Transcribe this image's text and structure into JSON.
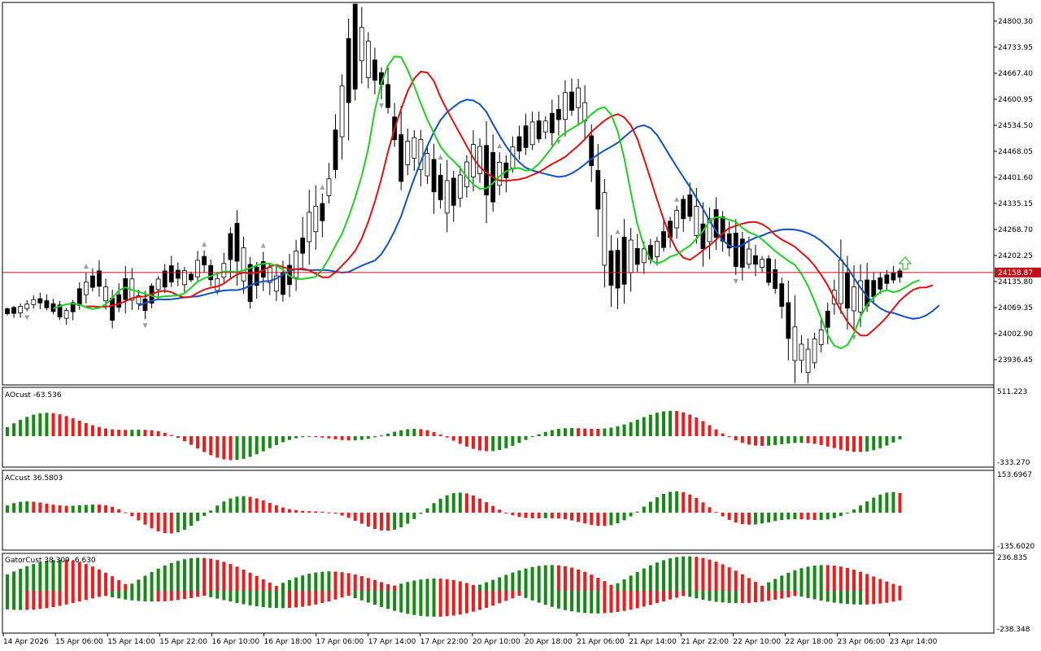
{
  "colors": {
    "bull": "#ffffff",
    "bear": "#000000",
    "jaw": "#1152c4",
    "teeth": "#e31010",
    "lips": "#19d31e",
    "up_bar": "#158a15",
    "down_bar": "#ee1c1c",
    "price_line": "#c8101a",
    "price_tag": "#c8101a",
    "fractal": "#9e9e9e",
    "signal_arrow": "#4cc94c"
  },
  "price_panel": {
    "current_price": "24158.87",
    "ticks": [
      "24800.30",
      "24733.95",
      "24667.40",
      "24600.95",
      "24534.50",
      "24468.05",
      "24401.60",
      "24335.15",
      "24268.70",
      "24202.25",
      "24135.80",
      "24069.35",
      "24002.90",
      "23936.45"
    ]
  },
  "x_axis": {
    "labels": [
      "14 Apr 2026",
      "15 Apr 06:00",
      "15 Apr 14:00",
      "15 Apr 22:00",
      "16 Apr 10:00",
      "16 Apr 18:00",
      "17 Apr 06:00",
      "17 Apr 14:00",
      "17 Apr 22:00",
      "20 Apr 10:00",
      "20 Apr 18:00",
      "21 Apr 06:00",
      "21 Apr 14:00",
      "21 Apr 22:00",
      "22 Apr 10:00",
      "22 Apr 18:00",
      "23 Apr 06:00",
      "23 Apr 14:00"
    ]
  },
  "indicators": {
    "ao": {
      "label": "AOcust -63.536",
      "top": "511.223",
      "bottom": "-333.270"
    },
    "ac": {
      "label": "ACcust 36.5803",
      "top": "153.6967",
      "bottom": "-135.6020"
    },
    "gator": {
      "label": "GatorCust 38.309 -6.630",
      "top": "236.835",
      "bottom": "-238.348"
    }
  },
  "chart_data": {
    "type": "candlestick",
    "symbol_timeframe": "",
    "ohlc_anchors": [
      [
        24070,
        24080,
        24055,
        24060
      ],
      [
        24075,
        24090,
        24050,
        24065
      ],
      [
        24080,
        24110,
        24070,
        24090
      ],
      [
        24090,
        24100,
        24060,
        24070
      ],
      [
        24070,
        24090,
        24040,
        24050
      ],
      [
        24060,
        24120,
        24050,
        24110
      ],
      [
        24100,
        24170,
        24080,
        24150
      ],
      [
        24120,
        24130,
        24040,
        24060
      ],
      [
        24080,
        24150,
        24060,
        24130
      ],
      [
        24100,
        24120,
        24050,
        24070
      ],
      [
        24090,
        24140,
        24080,
        24130
      ],
      [
        24130,
        24180,
        24110,
        24160
      ],
      [
        24160,
        24170,
        24120,
        24140
      ],
      [
        24150,
        24210,
        24130,
        24190
      ],
      [
        24170,
        24200,
        24100,
        24120
      ],
      [
        24140,
        24300,
        24130,
        24260
      ],
      [
        24230,
        24250,
        24100,
        24130
      ],
      [
        24160,
        24210,
        24120,
        24170
      ],
      [
        24150,
        24180,
        24100,
        24120
      ],
      [
        24150,
        24200,
        24110,
        24170
      ],
      [
        24140,
        24300,
        24120,
        24280
      ],
      [
        24270,
        24340,
        24250,
        24320
      ],
      [
        24330,
        24560,
        24300,
        24540
      ],
      [
        24550,
        24850,
        24520,
        24780
      ],
      [
        24780,
        24810,
        24650,
        24690
      ],
      [
        24670,
        24700,
        24600,
        24640
      ],
      [
        24600,
        24620,
        24410,
        24450
      ],
      [
        24440,
        24500,
        24400,
        24480
      ],
      [
        24460,
        24520,
        24380,
        24420
      ],
      [
        24380,
        24460,
        24300,
        24350
      ],
      [
        24350,
        24420,
        24310,
        24380
      ],
      [
        24390,
        24500,
        24350,
        24460
      ],
      [
        24450,
        24550,
        24340,
        24400
      ],
      [
        24400,
        24470,
        24380,
        24420
      ],
      [
        24420,
        24520,
        24400,
        24500
      ],
      [
        24480,
        24540,
        24440,
        24520
      ],
      [
        24510,
        24560,
        24470,
        24540
      ],
      [
        24540,
        24620,
        24500,
        24590
      ],
      [
        24580,
        24640,
        24520,
        24610
      ],
      [
        24600,
        24620,
        24350,
        24380
      ],
      [
        24370,
        24400,
        24120,
        24150
      ],
      [
        24140,
        24220,
        24050,
        24200
      ],
      [
        24190,
        24240,
        24160,
        24200
      ],
      [
        24200,
        24240,
        24170,
        24220
      ],
      [
        24230,
        24310,
        24190,
        24280
      ],
      [
        24290,
        24360,
        24270,
        24340
      ],
      [
        24310,
        24380,
        24230,
        24250
      ],
      [
        24260,
        24310,
        24200,
        24290
      ],
      [
        24290,
        24310,
        24180,
        24220
      ],
      [
        24230,
        24270,
        24180,
        24200
      ],
      [
        24190,
        24230,
        24150,
        24180
      ],
      [
        24170,
        24200,
        24100,
        24130
      ],
      [
        24130,
        24150,
        23920,
        23980
      ],
      [
        23990,
        24000,
        23910,
        23930
      ],
      [
        23940,
        24020,
        23920,
        24010
      ],
      [
        24000,
        24150,
        23990,
        24140
      ],
      [
        24120,
        24210,
        24050,
        24090
      ],
      [
        24080,
        24130,
        24030,
        24110
      ],
      [
        24110,
        24160,
        24090,
        24140
      ],
      [
        24140,
        24170,
        24120,
        24155
      ]
    ],
    "signal": "buy-arrow"
  }
}
